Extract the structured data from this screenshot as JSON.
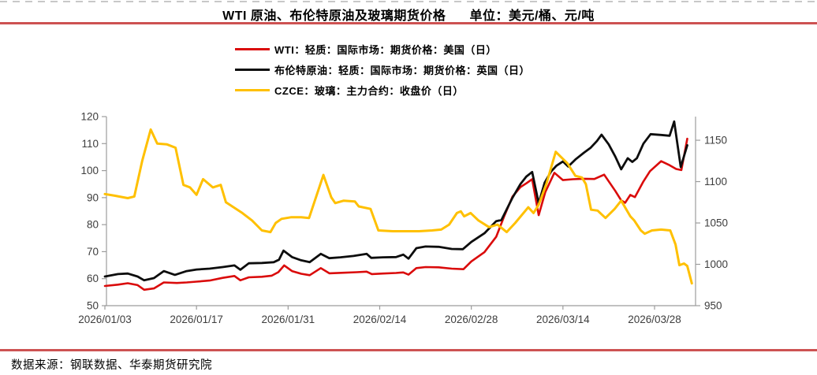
{
  "page": {
    "title_main": "WTI 原油、布伦特原油及玻璃期货价格",
    "title_unit": "单位：美元/桶、元/吨"
  },
  "legend": {
    "items": [
      {
        "id": "wti",
        "label": "WTI：轻质：国际市场：期货价格：美国（日）",
        "color": "#da0b0b"
      },
      {
        "id": "brent",
        "label": "布伦特原油：轻质：国际市场：期货价格：英国（日）",
        "color": "#0d0d0d"
      },
      {
        "id": "czce",
        "label": "CZCE：玻璃：主力合约：收盘价（日）",
        "color": "#ffc000"
      }
    ]
  },
  "footer": {
    "source": "数据来源：钢联数据、华泰期货研究院"
  },
  "colors": {
    "rule_red": "#cd5252",
    "axis_line": "#9c9c9c",
    "axis_text": "#3d3d3d",
    "wti": "#da0b0b",
    "brent": "#0d0d0d",
    "czce": "#ffc000"
  },
  "chart_data": {
    "type": "line",
    "title": "WTI 原油、布伦特原油及玻璃期货价格",
    "units": "美元/桶、元/吨",
    "x_axis": {
      "start_date": "2026/01/03",
      "domain_days": [
        0,
        90.3
      ],
      "tick_days": [
        0,
        14,
        28,
        42,
        56,
        70,
        84
      ],
      "tick_labels": [
        "2026/01/03",
        "2026/01/17",
        "2026/01/31",
        "2026/02/14",
        "2026/02/28",
        "2026/03/14",
        "2026/03/28"
      ]
    },
    "left_axis": {
      "min": 50,
      "max": 120,
      "ticks": [
        50,
        60,
        70,
        80,
        90,
        100,
        110,
        120
      ],
      "unit": "美元/桶"
    },
    "right_axis": {
      "min": 950,
      "axis_max": 1178.6,
      "ticks": [
        950,
        1000,
        1050,
        1100,
        1150
      ],
      "unit": "元/吨"
    },
    "grid": false,
    "legend_position": "top-center",
    "series": [
      {
        "name": "WTI：轻质：国际市场：期货价格：美国（日）",
        "axis": "left",
        "color": "#da0b0b",
        "width": 2.6,
        "points": [
          [
            0,
            57.3
          ],
          [
            2,
            57.8
          ],
          [
            3.5,
            58.3
          ],
          [
            5,
            57.6
          ],
          [
            6,
            55.9
          ],
          [
            7.5,
            56.4
          ],
          [
            9,
            58.6
          ],
          [
            11,
            58.4
          ],
          [
            12.5,
            58.6
          ],
          [
            14,
            58.9
          ],
          [
            16,
            59.3
          ],
          [
            18,
            60.3
          ],
          [
            19.8,
            61.0
          ],
          [
            20.7,
            59.4
          ],
          [
            22,
            60.5
          ],
          [
            24,
            60.7
          ],
          [
            25.5,
            61.1
          ],
          [
            26.5,
            62.4
          ],
          [
            27.4,
            64.9
          ],
          [
            28.6,
            62.8
          ],
          [
            30,
            61.8
          ],
          [
            31.3,
            61.3
          ],
          [
            33,
            63.9
          ],
          [
            34.3,
            62.0
          ],
          [
            36.5,
            62.2
          ],
          [
            38.5,
            62.4
          ],
          [
            40,
            62.6
          ],
          [
            40.8,
            61.7
          ],
          [
            42.5,
            61.9
          ],
          [
            44.5,
            62.1
          ],
          [
            45.6,
            62.3
          ],
          [
            46.4,
            61.5
          ],
          [
            47.6,
            63.9
          ],
          [
            49,
            64.3
          ],
          [
            51,
            64.2
          ],
          [
            53,
            63.7
          ],
          [
            54.8,
            63.5
          ],
          [
            56,
            66.4
          ],
          [
            58,
            69.8
          ],
          [
            59.8,
            75.5
          ],
          [
            61,
            83.0
          ],
          [
            62.3,
            90.4
          ],
          [
            63.5,
            93.9
          ],
          [
            64.4,
            95.3
          ],
          [
            65.3,
            96.8
          ],
          [
            66.3,
            83.5
          ],
          [
            67.3,
            92.0
          ],
          [
            68.7,
            99.2
          ],
          [
            70,
            96.5
          ],
          [
            71.5,
            96.8
          ],
          [
            73,
            97.0
          ],
          [
            74.8,
            96.9
          ],
          [
            76.3,
            98.5
          ],
          [
            78,
            92.5
          ],
          [
            78.9,
            89.0
          ],
          [
            79.5,
            88.1
          ],
          [
            80.3,
            91.0
          ],
          [
            81,
            90.2
          ],
          [
            82.3,
            96.0
          ],
          [
            83.3,
            99.8
          ],
          [
            85,
            103.5
          ],
          [
            86.3,
            102.0
          ],
          [
            87.3,
            100.6
          ],
          [
            88.1,
            100.2
          ],
          [
            89,
            111.8
          ]
        ]
      },
      {
        "name": "布伦特原油：轻质：国际市场：期货价格：英国（日）",
        "axis": "left",
        "color": "#0d0d0d",
        "width": 2.8,
        "points": [
          [
            0,
            60.8
          ],
          [
            2,
            61.7
          ],
          [
            3.5,
            61.9
          ],
          [
            5,
            60.8
          ],
          [
            6,
            59.4
          ],
          [
            7.5,
            60.2
          ],
          [
            9,
            62.8
          ],
          [
            10.7,
            61.4
          ],
          [
            12.5,
            62.8
          ],
          [
            14,
            63.4
          ],
          [
            16,
            63.7
          ],
          [
            18,
            64.3
          ],
          [
            19.8,
            64.9
          ],
          [
            20.7,
            63.3
          ],
          [
            22,
            65.7
          ],
          [
            24,
            65.8
          ],
          [
            25.8,
            66.1
          ],
          [
            26.6,
            67.0
          ],
          [
            27.3,
            70.4
          ],
          [
            28.6,
            68.0
          ],
          [
            30,
            66.8
          ],
          [
            31.3,
            66.1
          ],
          [
            33,
            69.2
          ],
          [
            34.3,
            67.6
          ],
          [
            36,
            67.9
          ],
          [
            38,
            68.4
          ],
          [
            40,
            69.2
          ],
          [
            40.7,
            67.7
          ],
          [
            42.5,
            67.9
          ],
          [
            44.5,
            68.0
          ],
          [
            45.6,
            68.9
          ],
          [
            46.4,
            67.4
          ],
          [
            47.6,
            71.3
          ],
          [
            49,
            71.9
          ],
          [
            51,
            71.8
          ],
          [
            53,
            71.0
          ],
          [
            54.7,
            70.9
          ],
          [
            56,
            73.6
          ],
          [
            58,
            76.8
          ],
          [
            59.8,
            81.3
          ],
          [
            60.6,
            81.7
          ],
          [
            62.3,
            90.0
          ],
          [
            63.5,
            95.0
          ],
          [
            64.4,
            97.8
          ],
          [
            65.3,
            99.5
          ],
          [
            66.3,
            87.9
          ],
          [
            67.2,
            95.5
          ],
          [
            68.2,
            99.7
          ],
          [
            69,
            101.8
          ],
          [
            70,
            103.4
          ],
          [
            70.8,
            101.5
          ],
          [
            72,
            104.3
          ],
          [
            73.2,
            106.6
          ],
          [
            74.2,
            108.4
          ],
          [
            75.2,
            111.0
          ],
          [
            75.9,
            113.3
          ],
          [
            77,
            109.7
          ],
          [
            78,
            105.2
          ],
          [
            78.9,
            100.5
          ],
          [
            79.9,
            104.6
          ],
          [
            80.6,
            103.2
          ],
          [
            81.3,
            104.6
          ],
          [
            82.3,
            110.0
          ],
          [
            83.4,
            113.5
          ],
          [
            85,
            113.2
          ],
          [
            86.3,
            112.9
          ],
          [
            87,
            118.2
          ],
          [
            88,
            101.3
          ],
          [
            89,
            109.4
          ]
        ]
      },
      {
        "name": "CZCE：玻璃：主力合约：收盘价（日）",
        "axis": "right",
        "color": "#ffc000",
        "width": 3,
        "points": [
          [
            0,
            1085
          ],
          [
            1.5,
            1083
          ],
          [
            3.5,
            1080
          ],
          [
            4.5,
            1082
          ],
          [
            5.7,
            1125
          ],
          [
            7,
            1163
          ],
          [
            8,
            1146
          ],
          [
            9.5,
            1145
          ],
          [
            10.8,
            1141
          ],
          [
            12,
            1096
          ],
          [
            13,
            1093
          ],
          [
            14,
            1084
          ],
          [
            15,
            1103
          ],
          [
            16.5,
            1093
          ],
          [
            17.7,
            1096
          ],
          [
            18.5,
            1075
          ],
          [
            21,
            1062
          ],
          [
            22.5,
            1053
          ],
          [
            24,
            1041
          ],
          [
            25.3,
            1039
          ],
          [
            26.1,
            1050
          ],
          [
            27,
            1055
          ],
          [
            28.5,
            1057
          ],
          [
            30,
            1057
          ],
          [
            31.2,
            1056
          ],
          [
            33.4,
            1108
          ],
          [
            34.6,
            1081
          ],
          [
            35.2,
            1074
          ],
          [
            36.5,
            1077
          ],
          [
            38.2,
            1076
          ],
          [
            38.8,
            1070
          ],
          [
            40.6,
            1067
          ],
          [
            41.8,
            1041
          ],
          [
            44,
            1040
          ],
          [
            46,
            1040
          ],
          [
            48,
            1040
          ],
          [
            50,
            1041
          ],
          [
            51.4,
            1042
          ],
          [
            52.6,
            1048
          ],
          [
            53.8,
            1062
          ],
          [
            54.4,
            1064
          ],
          [
            54.9,
            1058
          ],
          [
            55.9,
            1062
          ],
          [
            57.1,
            1053
          ],
          [
            58.7,
            1045
          ],
          [
            60,
            1048
          ],
          [
            61.4,
            1039
          ],
          [
            62.7,
            1050
          ],
          [
            64.7,
            1069
          ],
          [
            65.5,
            1062
          ],
          [
            66.3,
            1072
          ],
          [
            67.5,
            1098
          ],
          [
            68.9,
            1136
          ],
          [
            70.7,
            1122
          ],
          [
            71.9,
            1107
          ],
          [
            72.9,
            1105
          ],
          [
            73.5,
            1097
          ],
          [
            74.3,
            1066
          ],
          [
            75.3,
            1065
          ],
          [
            76.5,
            1056
          ],
          [
            77.9,
            1067
          ],
          [
            78.9,
            1077
          ],
          [
            80.3,
            1058
          ],
          [
            80.9,
            1053
          ],
          [
            81.9,
            1041
          ],
          [
            82.5,
            1037
          ],
          [
            83.6,
            1041
          ],
          [
            85,
            1042
          ],
          [
            86.4,
            1041
          ],
          [
            87.2,
            1024
          ],
          [
            87.8,
            999
          ],
          [
            88.5,
            1001
          ],
          [
            89,
            998
          ],
          [
            89.7,
            977
          ]
        ]
      }
    ]
  }
}
